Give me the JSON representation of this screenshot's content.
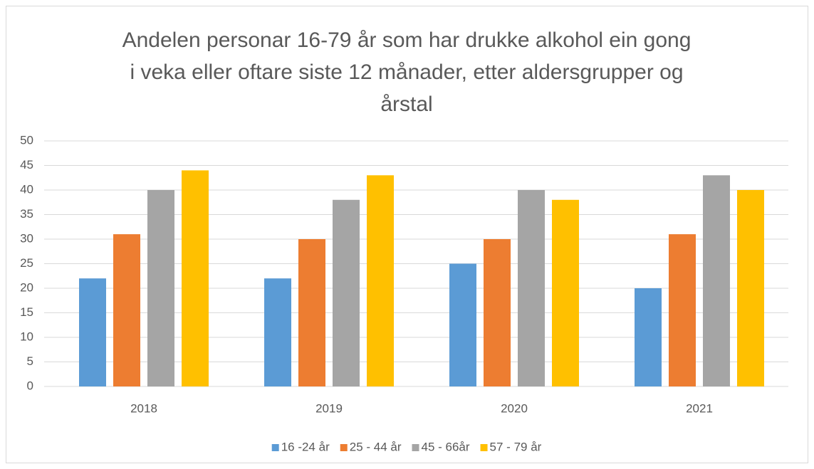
{
  "chart_data": {
    "type": "bar",
    "title": "Andelen personar 16-79 år som har drukke alkohol ein gong i veka eller oftare siste 12 månader, etter aldersgrupper og årstal",
    "categories": [
      "2018",
      "2019",
      "2020",
      "2021"
    ],
    "series": [
      {
        "name": "16 -24 år",
        "color": "#5b9bd5",
        "values": [
          22,
          22,
          25,
          20
        ]
      },
      {
        "name": "25 - 44 år",
        "color": "#ed7d31",
        "values": [
          31,
          30,
          30,
          31
        ]
      },
      {
        "name": "45 - 66år",
        "color": "#a5a5a5",
        "values": [
          40,
          38,
          40,
          43
        ]
      },
      {
        "name": "57 - 79 år",
        "color": "#ffc000",
        "values": [
          44,
          43,
          38,
          40
        ]
      }
    ],
    "ylim": [
      0,
      50
    ],
    "yticks": [
      0,
      5,
      10,
      15,
      20,
      25,
      30,
      35,
      40,
      45,
      50
    ],
    "grid": true,
    "legend": "bottom"
  }
}
